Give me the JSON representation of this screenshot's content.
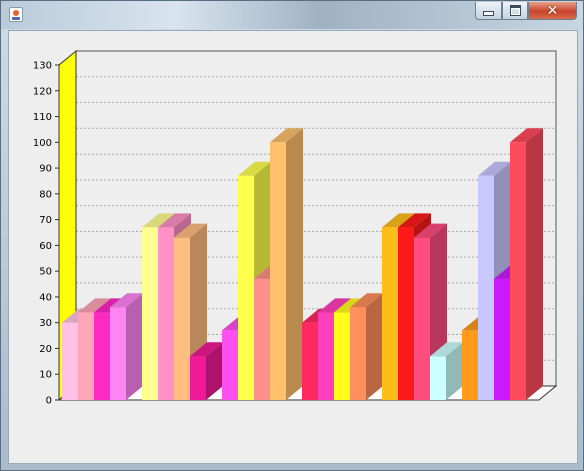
{
  "window": {
    "title": "",
    "icon": "java-coffee-cup-icon",
    "controls": [
      "minimize-icon",
      "maximize-icon",
      "close-icon"
    ]
  },
  "chart_data": {
    "type": "bar",
    "style": "3d-grouped",
    "title": "",
    "xlabel": "",
    "ylabel": "",
    "ylim": [
      0,
      130
    ],
    "yticks": [
      0,
      10,
      20,
      30,
      40,
      50,
      60,
      70,
      80,
      90,
      100,
      110,
      120,
      130
    ],
    "grid": true,
    "legend": "none",
    "wall_color": "#ffff00",
    "groups": [
      {
        "bars": [
          {
            "value": 30,
            "color": "#ffc2e6"
          },
          {
            "value": 34,
            "color": "#ffa6b6"
          },
          {
            "value": 34,
            "color": "#ff29c4"
          },
          {
            "value": 36,
            "color": "#ff85f5"
          }
        ]
      },
      {
        "bars": [
          {
            "value": 67,
            "color": "#ffff8f"
          },
          {
            "value": 67,
            "color": "#ff91c6"
          },
          {
            "value": 63,
            "color": "#ffbd80"
          },
          {
            "value": 17,
            "color": "#f01a96"
          }
        ]
      },
      {
        "bars": [
          {
            "value": 27,
            "color": "#ff4ff0"
          },
          {
            "value": 87,
            "color": "#ffff4d"
          },
          {
            "value": 47,
            "color": "#ff8f8a"
          },
          {
            "value": 100,
            "color": "#ffc06b"
          }
        ]
      },
      {
        "bars": [
          {
            "value": 30,
            "color": "#ff2960"
          },
          {
            "value": 34,
            "color": "#ff40bc"
          },
          {
            "value": 34,
            "color": "#ffff1a"
          },
          {
            "value": 36,
            "color": "#ff8f5c"
          }
        ]
      },
      {
        "bars": [
          {
            "value": 67,
            "color": "#ffbd1a"
          },
          {
            "value": 67,
            "color": "#ff1a1a"
          },
          {
            "value": 63,
            "color": "#ff4d80"
          },
          {
            "value": 17,
            "color": "#ccffff"
          }
        ]
      },
      {
        "bars": [
          {
            "value": 27,
            "color": "#ff9a1a"
          },
          {
            "value": 87,
            "color": "#c8c8ff"
          },
          {
            "value": 47,
            "color": "#cc1aff"
          },
          {
            "value": 100,
            "color": "#ff4a5c"
          }
        ]
      }
    ]
  }
}
